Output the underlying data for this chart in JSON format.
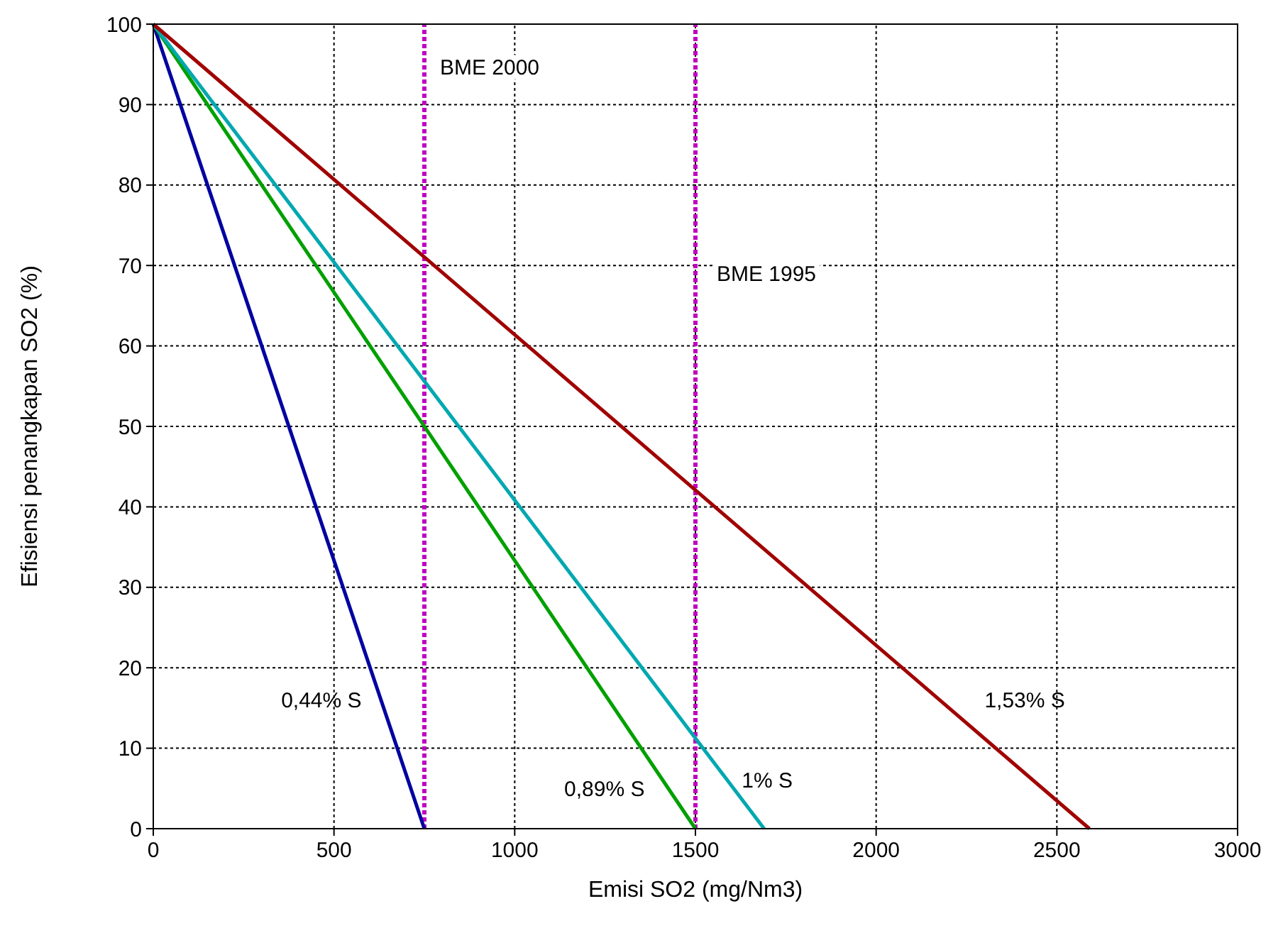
{
  "chart_data": {
    "type": "line",
    "xlabel": "Emisi SO2 (mg/Nm3)",
    "ylabel": "Efisiensi penangkapan SO2 (%)",
    "xlim": [
      0,
      3000
    ],
    "ylim": [
      0,
      100
    ],
    "xticks": [
      0,
      500,
      1000,
      1500,
      2000,
      2500,
      3000
    ],
    "yticks": [
      0,
      10,
      20,
      30,
      40,
      50,
      60,
      70,
      80,
      90,
      100
    ],
    "grid": true,
    "marker": "none",
    "line_style": "solid",
    "series": [
      {
        "name": "0,44% S",
        "color": "#0000a0",
        "x": [
          0,
          750
        ],
        "values": [
          100,
          0
        ]
      },
      {
        "name": "0,89% S",
        "color": "#00a000",
        "x": [
          0,
          1500
        ],
        "values": [
          100,
          0
        ]
      },
      {
        "name": "1% S",
        "color": "#00a8b0",
        "x": [
          0,
          1690
        ],
        "values": [
          100,
          0
        ]
      },
      {
        "name": "1,53% S",
        "color": "#a00000",
        "x": [
          0,
          2590
        ],
        "values": [
          100,
          0
        ]
      }
    ],
    "ref_lines": [
      {
        "axis": "x",
        "value": 750,
        "label": "BME 2000",
        "color": "#c000c0",
        "line_style": "dotted"
      },
      {
        "axis": "x",
        "value": 1500,
        "label": "BME 1995",
        "color": "#c000c0",
        "line_style": "dotted"
      }
    ]
  }
}
